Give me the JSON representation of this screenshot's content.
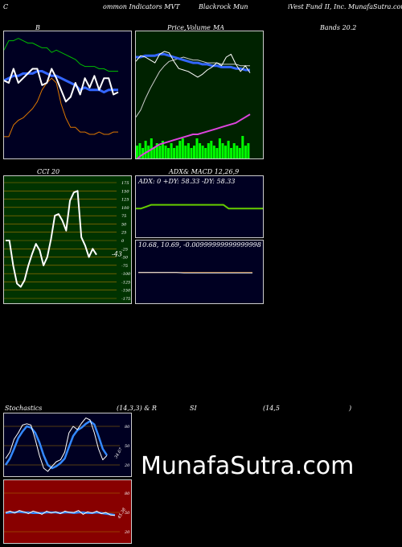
{
  "header": {
    "c1": "C",
    "c2": "ommon  Indicators MVT",
    "c3": "Blackrock Mun",
    "c4": "iVest Fund II, Inc. MunafaSutra.com"
  },
  "bollinger": {
    "label": "B",
    "colors": {
      "bg": "#000022",
      "price": "#ffffff",
      "upper": "#00bb00",
      "lower": "#dd7700",
      "mid": "#3366ff"
    },
    "chart_data": {
      "type": "line",
      "series": [
        {
          "values": [
            8.2,
            8.6,
            8.6,
            8.7,
            8.6,
            8.5,
            8.5,
            8.4,
            8.3,
            8.3,
            8.1,
            8.2,
            8.1,
            8.0,
            7.9,
            7.8,
            7.6,
            7.5,
            7.5,
            7.5,
            7.4,
            7.4,
            7.3,
            7.3,
            7.3
          ]
        },
        {
          "values": [
            6.9,
            6.8,
            7.4,
            6.8,
            7.0,
            7.2,
            7.4,
            7.4,
            6.7,
            6.8,
            7.4,
            7.0,
            6.5,
            6.0,
            6.2,
            6.8,
            6.3,
            7.0,
            6.6,
            7.1,
            6.5,
            7.0,
            7.0,
            6.3,
            6.4
          ]
        },
        {
          "values": [
            6.9,
            7.0,
            7.1,
            7.1,
            7.2,
            7.2,
            7.2,
            7.3,
            7.3,
            7.2,
            7.1,
            7.1,
            7.0,
            6.9,
            6.8,
            6.7,
            6.5,
            6.6,
            6.5,
            6.5,
            6.5,
            6.4,
            6.5,
            6.5,
            6.5
          ]
        },
        {
          "values": [
            4.5,
            4.5,
            5.0,
            5.2,
            5.3,
            5.5,
            5.7,
            6.0,
            6.5,
            6.8,
            7.0,
            6.8,
            5.9,
            5.3,
            4.9,
            4.9,
            4.7,
            4.7,
            4.6,
            4.6,
            4.7,
            4.6,
            4.6,
            4.7,
            4.7
          ]
        }
      ]
    }
  },
  "price_ma": {
    "label_a": "Price,",
    "label_b": "Volume",
    "label_c": "MA",
    "label_d": "Bands 20.2",
    "colors": {
      "bg": "#002200",
      "price": "#ffffff",
      "ma": "#3366ff",
      "ma2": "#cccccc",
      "volume": "#00ff00",
      "lower": "#dd44dd"
    },
    "chart_data": {
      "type": "line",
      "series": [
        {
          "values": [
            6.9,
            7.3,
            7.2,
            7.0,
            6.8,
            7.4,
            7.6,
            7.5,
            6.9,
            6.4,
            6.3,
            6.2,
            6.0,
            5.8,
            6.0,
            6.3,
            6.5,
            6.8,
            6.6,
            7.2,
            7.4,
            6.7,
            6.2,
            6.6,
            6.1
          ]
        },
        {
          "values": [
            7.2,
            7.2,
            7.3,
            7.3,
            7.3,
            7.4,
            7.4,
            7.3,
            7.2,
            7.1,
            7.0,
            6.9,
            6.8,
            6.8,
            6.7,
            6.7,
            6.6,
            6.6,
            6.5,
            6.5,
            6.5,
            6.4,
            6.4,
            6.3,
            6.3
          ]
        },
        {
          "values": [
            3.0,
            3.5,
            4.3,
            5.0,
            5.6,
            6.2,
            6.6,
            6.9,
            7.0,
            7.1,
            7.2,
            7.1,
            7.0,
            7.0,
            6.9,
            6.8,
            6.8,
            6.8,
            6.7,
            6.7,
            6.7,
            6.7,
            6.6,
            6.6,
            6.6
          ]
        },
        {
          "values": [
            0.0,
            0.3,
            0.5,
            0.7,
            0.9,
            1.1,
            1.2,
            1.3,
            1.4,
            1.5,
            1.6,
            1.7,
            1.8,
            1.8,
            1.9,
            2.0,
            2.1,
            2.2,
            2.3,
            2.4,
            2.5,
            2.6,
            2.8,
            3.0,
            3.2
          ]
        }
      ],
      "volume": [
        0.6,
        0.7,
        0.5,
        0.8,
        0.6,
        0.9,
        0.5,
        0.7,
        0.6,
        0.8,
        0.6,
        0.5,
        0.7,
        0.5,
        0.6,
        0.8,
        0.9,
        0.6,
        0.7,
        0.5,
        0.6,
        0.9,
        0.7,
        0.6,
        0.5,
        0.7,
        0.8,
        0.6,
        0.5,
        0.9,
        0.7,
        0.6,
        0.8,
        0.5,
        0.7,
        0.6,
        0.5,
        1.0,
        0.6,
        0.7
      ]
    }
  },
  "cci": {
    "label": "CCI 20",
    "value_label": "-43",
    "colors": {
      "bg": "#003300",
      "line": "#ffffff",
      "grid": "#aa7700"
    },
    "ticks": [
      "175",
      "150",
      "125",
      "100",
      "75",
      "50",
      "25",
      "0",
      "-25",
      "-50",
      "-75",
      "-100",
      "-125",
      "-150",
      "-175"
    ],
    "chart_data": {
      "type": "line",
      "ylim": [
        -175,
        175
      ],
      "values": [
        0,
        0,
        -75,
        -130,
        -140,
        -120,
        -75,
        -40,
        -10,
        -30,
        -75,
        -50,
        5,
        75,
        80,
        60,
        30,
        120,
        145,
        150,
        10,
        -15,
        -50,
        -25,
        -43
      ]
    }
  },
  "adx": {
    "label_a": "ADX",
    "label_b": "& MACD 12,26,9",
    "readout": "ADX: 0   +DY: 58.33  -DY: 58.33",
    "colors": {
      "bg": "#000022",
      "adx": "#66cc00"
    },
    "chart_data": {
      "type": "line",
      "values": [
        42,
        42,
        45,
        48,
        48,
        48,
        48,
        48,
        48,
        48,
        48,
        48,
        48,
        48,
        48,
        48,
        48,
        48,
        42,
        42,
        42,
        42,
        42,
        42,
        42,
        42
      ]
    }
  },
  "macd": {
    "readout": "10.68,  10.69,  -0.00999999999999998",
    "colors": {
      "bg": "#000022",
      "macd": "#ffffff",
      "signal": "#dd7700"
    },
    "chart_data": {
      "type": "line",
      "series": [
        {
          "values": [
            10.69,
            10.69,
            10.69,
            10.69,
            10.69,
            10.69,
            10.68,
            10.68,
            10.68,
            10.68,
            10.68,
            10.68,
            10.68,
            10.68,
            10.68,
            10.68
          ]
        },
        {
          "values": [
            10.69,
            10.69,
            10.69,
            10.69,
            10.69,
            10.69,
            10.69,
            10.69,
            10.69,
            10.69,
            10.69,
            10.69,
            10.69,
            10.69,
            10.69,
            10.69
          ]
        }
      ]
    }
  },
  "stochastics": {
    "label_a": "Stochastics",
    "label_b": "(14,3,3) & R",
    "label_c": "SI",
    "label_d": "(14,5",
    "label_e": ")",
    "value_label": "34.67",
    "ticks": [
      "80",
      "50",
      "20"
    ],
    "colors": {
      "bg": "#000022",
      "fast": "#ffffff",
      "slow": "#3388ff",
      "grid": "#aa7700"
    },
    "chart_data": {
      "type": "line",
      "ylim": [
        0,
        100
      ],
      "series": [
        {
          "values": [
            30,
            40,
            60,
            70,
            82,
            84,
            82,
            60,
            35,
            15,
            10,
            18,
            25,
            28,
            40,
            70,
            80,
            75,
            85,
            93,
            90,
            70,
            45,
            28,
            34.67
          ]
        },
        {
          "values": [
            20,
            30,
            45,
            62,
            72,
            80,
            78,
            70,
            55,
            35,
            20,
            15,
            18,
            23,
            30,
            48,
            65,
            74,
            78,
            84,
            88,
            83,
            65,
            45,
            35
          ]
        }
      ]
    }
  },
  "rsi": {
    "value_label": "45.38",
    "ticks": [
      "80",
      "50",
      "20"
    ],
    "colors": {
      "bg": "#880000",
      "rsi": "#ffffff",
      "mrsi": "#3388ff",
      "grid": "#aa7700"
    },
    "chart_data": {
      "type": "line",
      "ylim": [
        0,
        100
      ],
      "series": [
        {
          "values": [
            50,
            52,
            49,
            53,
            51,
            48,
            52,
            50,
            47,
            52,
            49,
            51,
            48,
            52,
            50,
            50,
            53,
            47,
            51,
            49,
            52,
            48,
            50,
            46,
            45.38
          ]
        },
        {
          "values": [
            49,
            50,
            50,
            51,
            50,
            50,
            49,
            49,
            49,
            50,
            50,
            50,
            49,
            50,
            50,
            49,
            50,
            50,
            49,
            49,
            50,
            49,
            48,
            47,
            46
          ]
        }
      ]
    }
  },
  "watermark": "MunafaSutra.com"
}
